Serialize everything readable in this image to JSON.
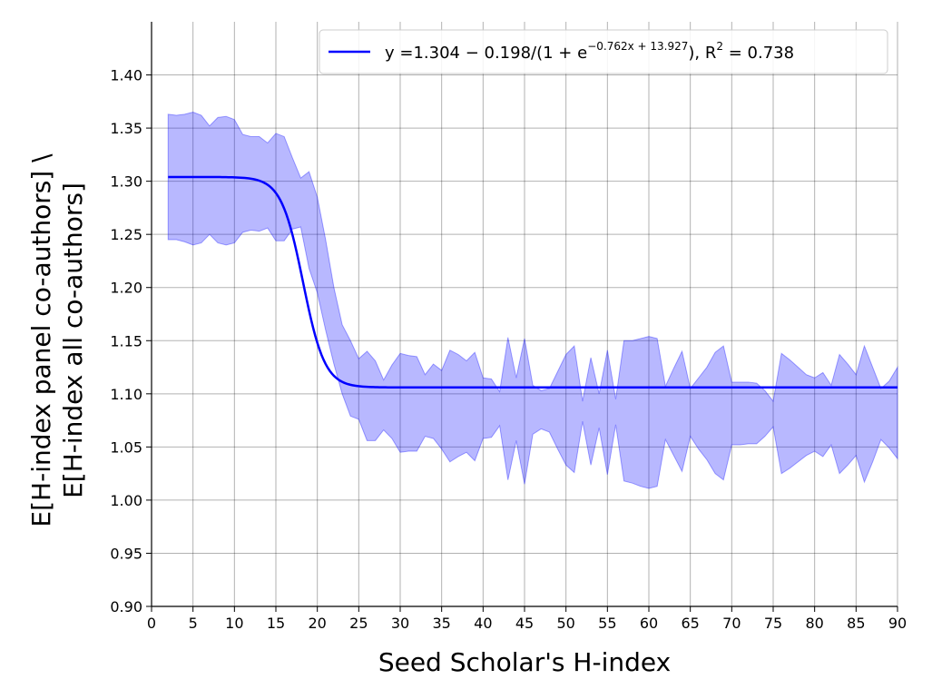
{
  "chart_data": {
    "type": "line",
    "xlabel": "Seed Scholar's H-index",
    "ylabel_line1": "E[H-index panel co-authors] \\",
    "ylabel_line2": "E[H-index all co-authors]",
    "xlim": [
      0,
      90
    ],
    "ylim": [
      0.9,
      1.45
    ],
    "x_ticks": [
      0,
      5,
      10,
      15,
      20,
      25,
      30,
      35,
      40,
      45,
      50,
      55,
      60,
      65,
      70,
      75,
      80,
      85,
      90
    ],
    "y_ticks": [
      0.9,
      0.95,
      1.0,
      1.05,
      1.1,
      1.15,
      1.2,
      1.25,
      1.3,
      1.35,
      1.4
    ],
    "y_tick_labels": [
      "0.90",
      "0.95",
      "1.00",
      "1.05",
      "1.10",
      "1.15",
      "1.20",
      "1.25",
      "1.30",
      "1.35",
      "1.40"
    ],
    "grid": true,
    "legend_position": "top-right",
    "fit": {
      "name_prefix": "y =1.304 − 0.198/(1 + e",
      "name_exponent": "−0.762x + 13.927",
      "name_middle": "), R",
      "name_r2_sup": "2",
      "name_r2_value": " = 0.738",
      "a": 1.304,
      "b": 0.198,
      "k": 0.762,
      "c": 13.927,
      "color": "#0000ff"
    },
    "band_color": "#0000ff",
    "band_upper": [
      [
        2,
        1.363
      ],
      [
        3,
        1.362
      ],
      [
        4,
        1.363
      ],
      [
        5,
        1.365
      ],
      [
        6,
        1.362
      ],
      [
        7,
        1.352
      ],
      [
        8,
        1.36
      ],
      [
        9,
        1.361
      ],
      [
        10,
        1.358
      ],
      [
        11,
        1.344
      ],
      [
        12,
        1.342
      ],
      [
        13,
        1.342
      ],
      [
        14,
        1.336
      ],
      [
        15,
        1.345
      ],
      [
        16,
        1.342
      ],
      [
        17,
        1.322
      ],
      [
        18,
        1.303
      ],
      [
        19,
        1.309
      ],
      [
        20,
        1.285
      ],
      [
        21,
        1.245
      ],
      [
        22,
        1.2
      ],
      [
        23,
        1.165
      ],
      [
        24,
        1.15
      ],
      [
        25,
        1.133
      ],
      [
        26,
        1.14
      ],
      [
        27,
        1.131
      ],
      [
        28,
        1.113
      ],
      [
        29,
        1.127
      ],
      [
        30,
        1.138
      ],
      [
        31,
        1.136
      ],
      [
        32,
        1.135
      ],
      [
        33,
        1.118
      ],
      [
        34,
        1.128
      ],
      [
        35,
        1.122
      ],
      [
        36,
        1.141
      ],
      [
        37,
        1.137
      ],
      [
        38,
        1.131
      ],
      [
        39,
        1.139
      ],
      [
        40,
        1.115
      ],
      [
        41,
        1.114
      ],
      [
        42,
        1.102
      ],
      [
        43,
        1.153
      ],
      [
        44,
        1.115
      ],
      [
        45,
        1.152
      ],
      [
        46,
        1.108
      ],
      [
        47,
        1.103
      ],
      [
        48,
        1.105
      ],
      [
        49,
        1.121
      ],
      [
        50,
        1.137
      ],
      [
        51,
        1.145
      ],
      [
        52,
        1.093
      ],
      [
        53,
        1.134
      ],
      [
        54,
        1.1
      ],
      [
        55,
        1.141
      ],
      [
        56,
        1.095
      ],
      [
        57,
        1.15
      ],
      [
        58,
        1.15
      ],
      [
        59,
        1.152
      ],
      [
        60,
        1.154
      ],
      [
        61,
        1.152
      ],
      [
        62,
        1.107
      ],
      [
        63,
        1.124
      ],
      [
        64,
        1.14
      ],
      [
        65,
        1.105
      ],
      [
        66,
        1.115
      ],
      [
        67,
        1.125
      ],
      [
        68,
        1.139
      ],
      [
        69,
        1.145
      ],
      [
        70,
        1.111
      ],
      [
        71,
        1.111
      ],
      [
        72,
        1.111
      ],
      [
        73,
        1.11
      ],
      [
        74,
        1.103
      ],
      [
        75,
        1.093
      ],
      [
        76,
        1.138
      ],
      [
        77,
        1.132
      ],
      [
        78,
        1.125
      ],
      [
        79,
        1.118
      ],
      [
        80,
        1.115
      ],
      [
        81,
        1.12
      ],
      [
        82,
        1.108
      ],
      [
        83,
        1.137
      ],
      [
        84,
        1.128
      ],
      [
        85,
        1.118
      ],
      [
        86,
        1.145
      ],
      [
        87,
        1.125
      ],
      [
        88,
        1.105
      ],
      [
        89,
        1.112
      ],
      [
        90,
        1.125
      ]
    ],
    "band_lower": [
      [
        2,
        1.245
      ],
      [
        3,
        1.245
      ],
      [
        4,
        1.243
      ],
      [
        5,
        1.24
      ],
      [
        6,
        1.242
      ],
      [
        7,
        1.25
      ],
      [
        8,
        1.242
      ],
      [
        9,
        1.24
      ],
      [
        10,
        1.242
      ],
      [
        11,
        1.252
      ],
      [
        12,
        1.254
      ],
      [
        13,
        1.253
      ],
      [
        14,
        1.256
      ],
      [
        15,
        1.244
      ],
      [
        16,
        1.244
      ],
      [
        17,
        1.255
      ],
      [
        18,
        1.257
      ],
      [
        19,
        1.218
      ],
      [
        20,
        1.195
      ],
      [
        21,
        1.16
      ],
      [
        22,
        1.128
      ],
      [
        23,
        1.1
      ],
      [
        24,
        1.079
      ],
      [
        25,
        1.076
      ],
      [
        26,
        1.056
      ],
      [
        27,
        1.056
      ],
      [
        28,
        1.066
      ],
      [
        29,
        1.058
      ],
      [
        30,
        1.045
      ],
      [
        31,
        1.046
      ],
      [
        32,
        1.046
      ],
      [
        33,
        1.06
      ],
      [
        34,
        1.058
      ],
      [
        35,
        1.048
      ],
      [
        36,
        1.036
      ],
      [
        37,
        1.041
      ],
      [
        38,
        1.045
      ],
      [
        39,
        1.037
      ],
      [
        40,
        1.058
      ],
      [
        41,
        1.059
      ],
      [
        42,
        1.07
      ],
      [
        43,
        1.019
      ],
      [
        44,
        1.056
      ],
      [
        45,
        1.015
      ],
      [
        46,
        1.062
      ],
      [
        47,
        1.067
      ],
      [
        48,
        1.064
      ],
      [
        49,
        1.048
      ],
      [
        50,
        1.033
      ],
      [
        51,
        1.026
      ],
      [
        52,
        1.074
      ],
      [
        53,
        1.033
      ],
      [
        54,
        1.068
      ],
      [
        55,
        1.024
      ],
      [
        56,
        1.071
      ],
      [
        57,
        1.018
      ],
      [
        58,
        1.016
      ],
      [
        59,
        1.013
      ],
      [
        60,
        1.011
      ],
      [
        61,
        1.013
      ],
      [
        62,
        1.057
      ],
      [
        63,
        1.042
      ],
      [
        64,
        1.027
      ],
      [
        65,
        1.06
      ],
      [
        66,
        1.048
      ],
      [
        67,
        1.038
      ],
      [
        68,
        1.025
      ],
      [
        69,
        1.019
      ],
      [
        70,
        1.052
      ],
      [
        71,
        1.052
      ],
      [
        72,
        1.053
      ],
      [
        73,
        1.053
      ],
      [
        74,
        1.06
      ],
      [
        75,
        1.069
      ],
      [
        76,
        1.025
      ],
      [
        77,
        1.03
      ],
      [
        78,
        1.036
      ],
      [
        79,
        1.042
      ],
      [
        80,
        1.046
      ],
      [
        81,
        1.041
      ],
      [
        82,
        1.052
      ],
      [
        83,
        1.025
      ],
      [
        84,
        1.033
      ],
      [
        85,
        1.042
      ],
      [
        86,
        1.017
      ],
      [
        87,
        1.036
      ],
      [
        88,
        1.057
      ],
      [
        89,
        1.049
      ],
      [
        90,
        1.039
      ]
    ]
  }
}
